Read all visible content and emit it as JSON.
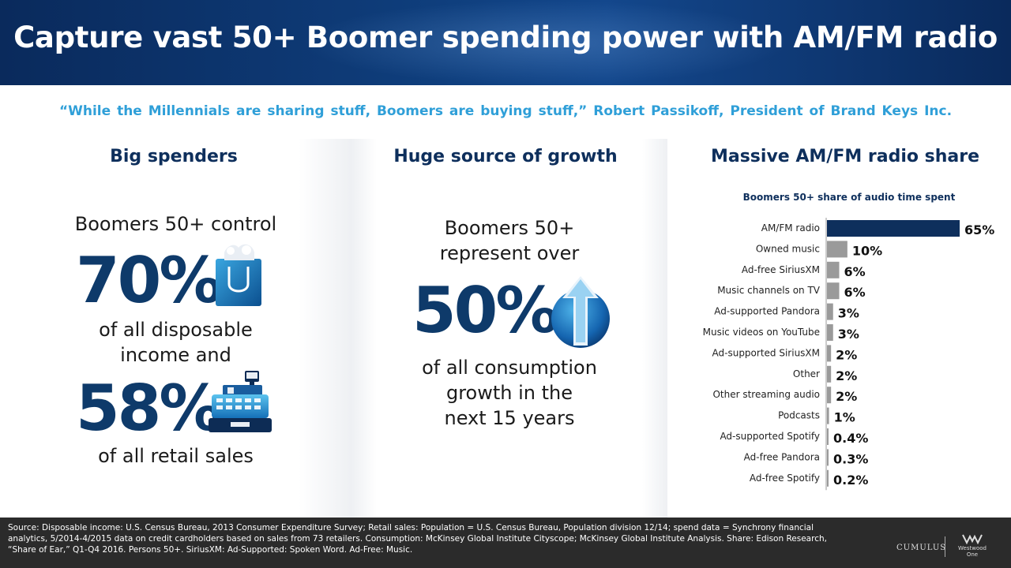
{
  "header": {
    "title": "Capture vast 50+ Boomer spending power with AM/FM radio"
  },
  "quote": "“While the Millennials are sharing stuff, Boomers are buying stuff,” Robert Passikoff, President of Brand Keys Inc.",
  "left": {
    "heading": "Big spenders",
    "line1": "Boomers 50+ control",
    "stat1": "70%",
    "line2a": "of all disposable",
    "line2b": "income and",
    "stat2": "58%",
    "line3": "of all retail sales",
    "icon1": "shopping-bag-icon",
    "icon2": "cash-register-icon"
  },
  "middle": {
    "heading": "Huge source of growth",
    "line1a": "Boomers 50+",
    "line1b": "represent over",
    "stat": "50%",
    "line2a": "of all consumption",
    "line2b": "growth in the",
    "line2c": "next 15 years",
    "icon": "growth-arrow-icon"
  },
  "right": {
    "heading": "Massive AM/FM radio share"
  },
  "colors": {
    "navy": "#0e3a6a",
    "highlight_bar": "#0e2f5c",
    "bar": "#9a9a9a",
    "quote": "#2f9fd8"
  },
  "chart_data": {
    "type": "bar",
    "orientation": "horizontal",
    "title": "Boomers 50+ share of audio time spent",
    "categories": [
      "AM/FM radio",
      "Owned music",
      "Ad-free SiriusXM",
      "Music channels on TV",
      "Ad-supported Pandora",
      "Music videos on YouTube",
      "Ad-supported SiriusXM",
      "Other",
      "Other streaming audio",
      "Podcasts",
      "Ad-supported Spotify",
      "Ad-free Pandora",
      "Ad-free Spotify"
    ],
    "values": [
      65,
      10,
      6,
      6,
      3,
      3,
      2,
      2,
      2,
      1,
      0.4,
      0.3,
      0.2
    ],
    "labels": [
      "65%",
      "10%",
      "6%",
      "6%",
      "3%",
      "3%",
      "2%",
      "2%",
      "2%",
      "1%",
      "0.4%",
      "0.3%",
      "0.2%"
    ],
    "xlim": [
      0,
      65
    ],
    "grid": false,
    "legend": "none"
  },
  "footer": {
    "source": "Source: Disposable income: U.S. Census Bureau, 2013 Consumer Expenditure Survey; Retail sales: Population = U.S. Census Bureau, Population division 12/14; spend data = Synchrony financial analytics, 5/2014-4/2015 data on credit cardholders based on sales from 73 retailers. Consumption: McKinsey Global Institute Cityscope; McKinsey Global Institute Analysis. Share: Edison Research, “Share of Ear,” Q1-Q4 2016. Persons 50+. SiriusXM: Ad-Supported: Spoken Word. Ad-Free: Music.",
    "logo1": "CUMULUS",
    "logo2": "Westwood One"
  }
}
